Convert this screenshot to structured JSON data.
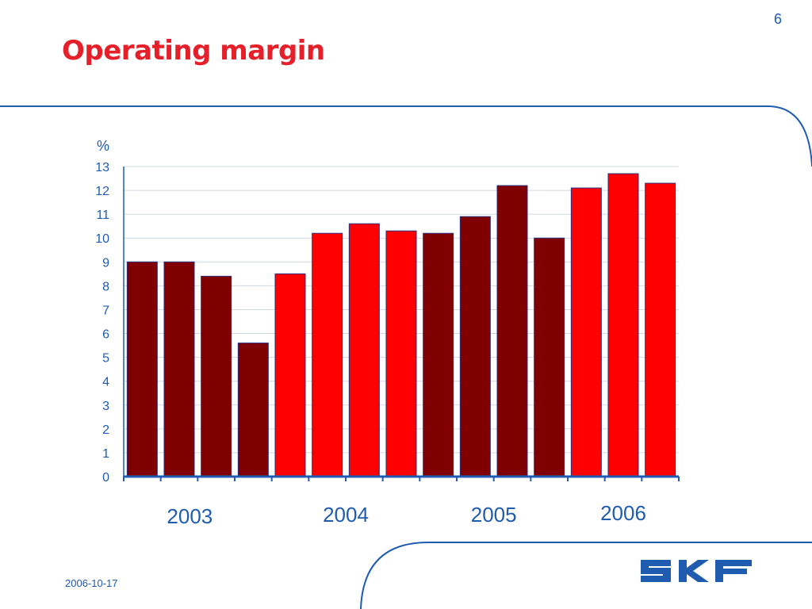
{
  "slide": {
    "title": "Operating margin",
    "page_number": "6",
    "date": "2006-10-17",
    "logo_text": "SKF"
  },
  "colors": {
    "title": "#e5202a",
    "accent_blue": "#1f5cb0",
    "bar_dark_red": "#800000",
    "bar_red": "#ff0000",
    "grid": "#cfd8e6"
  },
  "chart_data": {
    "type": "bar",
    "ylabel": "%",
    "ylim": [
      0,
      13
    ],
    "yticks": [
      "0",
      "1",
      "2",
      "3",
      "4",
      "5",
      "6",
      "7",
      "8",
      "9",
      "10",
      "11",
      "12",
      "13"
    ],
    "grid": true,
    "groups": [
      {
        "label": "2003",
        "start": 0,
        "count": 4
      },
      {
        "label": "2004",
        "start": 4,
        "count": 4
      },
      {
        "label": "2005",
        "start": 8,
        "count": 4
      },
      {
        "label": "2006",
        "start": 12,
        "count": 3
      }
    ],
    "values": [
      9.0,
      9.0,
      8.4,
      5.6,
      8.5,
      10.2,
      10.6,
      10.3,
      10.2,
      10.9,
      12.2,
      10.0,
      12.1,
      12.7,
      12.3
    ],
    "colors": [
      "#800000",
      "#800000",
      "#800000",
      "#800000",
      "#ff0000",
      "#ff0000",
      "#ff0000",
      "#ff0000",
      "#800000",
      "#800000",
      "#800000",
      "#800000",
      "#ff0000",
      "#ff0000",
      "#ff0000"
    ]
  }
}
